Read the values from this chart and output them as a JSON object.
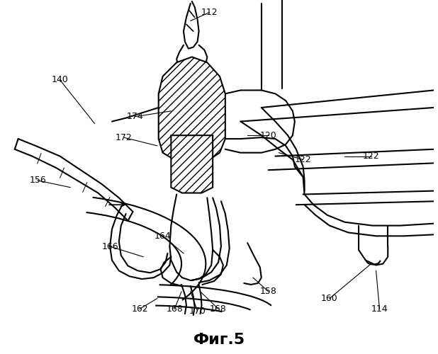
{
  "title": "Фиг.5",
  "title_fontsize": 16,
  "background_color": "#ffffff",
  "line_color": "#000000",
  "lw": 1.5,
  "fig_w": 6.18,
  "fig_h": 5.0,
  "dpi": 100
}
